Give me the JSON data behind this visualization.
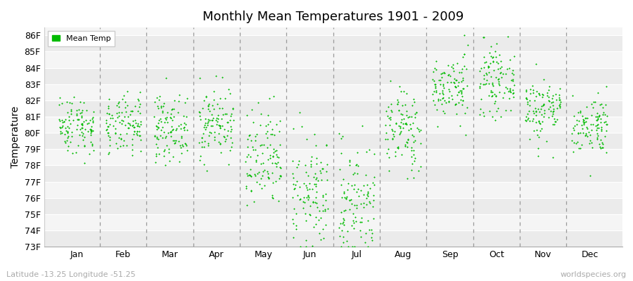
{
  "title": "Monthly Mean Temperatures 1901 - 2009",
  "ylabel": "Temperature",
  "subtitle": "Latitude -13.25 Longitude -51.25",
  "watermark": "worldspecies.org",
  "months": [
    "Jan",
    "Feb",
    "Mar",
    "Apr",
    "May",
    "Jun",
    "Jul",
    "Aug",
    "Sep",
    "Oct",
    "Nov",
    "Dec"
  ],
  "ylim": [
    73,
    86.5
  ],
  "yticks": [
    73,
    74,
    75,
    76,
    77,
    78,
    79,
    80,
    81,
    82,
    83,
    84,
    85,
    86
  ],
  "ytick_labels": [
    "73F",
    "74F",
    "75F",
    "76F",
    "77F",
    "78F",
    "79F",
    "80F",
    "81F",
    "82F",
    "83F",
    "84F",
    "85F",
    "86F"
  ],
  "dot_color": "#00bb00",
  "dot_size": 4,
  "legend_label": "Mean Temp",
  "background_color": "#ffffff",
  "plot_bg_even": "#ebebeb",
  "plot_bg_odd": "#f5f5f5",
  "grid_color": "#ffffff",
  "dashed_line_color": "#999999",
  "monthly_means": [
    80.5,
    80.4,
    80.3,
    80.6,
    78.2,
    76.2,
    75.8,
    80.2,
    82.8,
    83.2,
    81.5,
    80.5
  ],
  "monthly_stds": [
    0.9,
    0.9,
    1.0,
    1.1,
    1.6,
    1.7,
    1.8,
    1.3,
    1.0,
    1.0,
    1.0,
    0.9
  ],
  "seed": 42,
  "n_years": 109
}
